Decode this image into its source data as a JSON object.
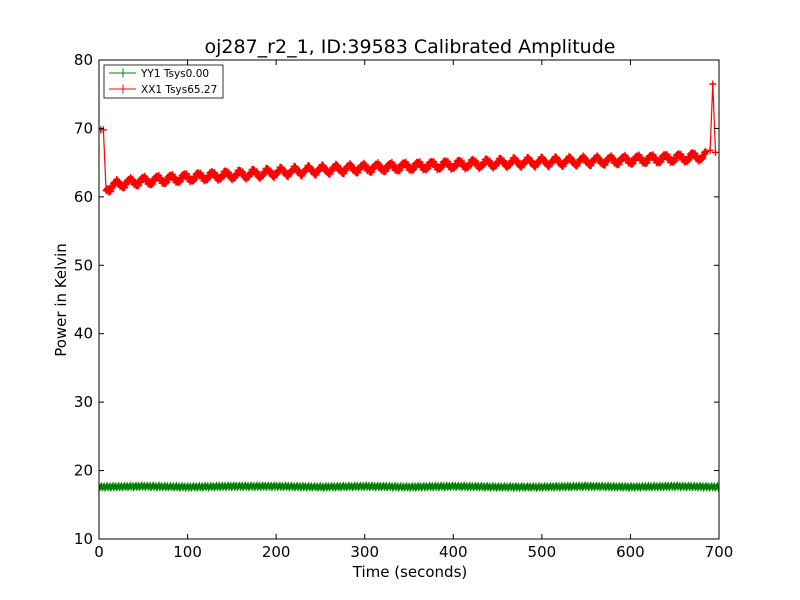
{
  "chart_data": {
    "type": "line",
    "title": "oj287_r2_1, ID:39583 Calibrated Amplitude",
    "xlabel": "Time (seconds)",
    "ylabel": "Power in Kelvin",
    "xlim": [
      0,
      700
    ],
    "ylim": [
      10,
      80
    ],
    "xticks": [
      0,
      100,
      200,
      300,
      400,
      500,
      600,
      700
    ],
    "yticks": [
      10,
      20,
      30,
      40,
      50,
      60,
      70,
      80
    ],
    "grid": false,
    "legend_position": "top-left",
    "series": [
      {
        "name": "YY1 Tsys0.00",
        "color": "#008000",
        "marker": "+",
        "x": [
          0,
          50,
          100,
          150,
          200,
          250,
          300,
          350,
          400,
          450,
          500,
          550,
          600,
          650,
          700
        ],
        "y": [
          17.6,
          17.7,
          17.6,
          17.7,
          17.7,
          17.6,
          17.7,
          17.6,
          17.7,
          17.6,
          17.6,
          17.7,
          17.6,
          17.7,
          17.6
        ],
        "noise": 0.25
      },
      {
        "name": "XX1 Tsys65.27",
        "color": "#ff0000",
        "marker": "+",
        "x": [
          2,
          8,
          20,
          40,
          60,
          80,
          100,
          120,
          150,
          180,
          200,
          230,
          260,
          300,
          340,
          380,
          420,
          460,
          500,
          540,
          580,
          620,
          660,
          685,
          690,
          693,
          696
        ],
        "y": [
          69.8,
          61.2,
          61.8,
          62.2,
          62.4,
          62.6,
          62.8,
          63.0,
          63.2,
          63.4,
          63.6,
          63.8,
          64.0,
          64.2,
          64.4,
          64.6,
          64.8,
          65.0,
          65.1,
          65.2,
          65.3,
          65.5,
          65.7,
          66.0,
          66.8,
          76.5,
          66.5
        ],
        "ripple": 0.5
      }
    ]
  }
}
